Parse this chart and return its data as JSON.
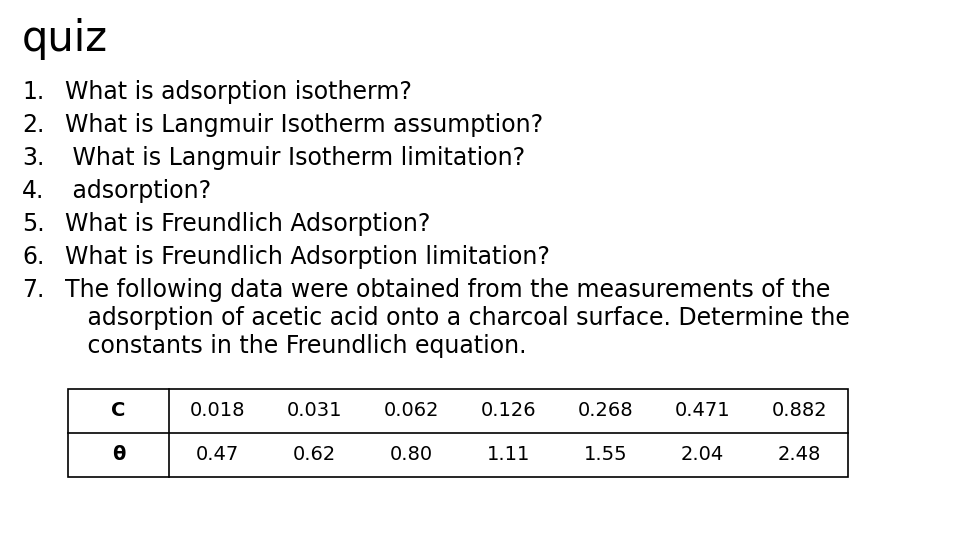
{
  "title": "quiz",
  "items": [
    "What is adsorption isotherm?",
    "What is Langmuir Isotherm assumption?",
    " What is Langmuir Isotherm limitation?",
    " adsorption?",
    "What is Freundlich Adsorption?",
    "What is Freundlich Adsorption limitation?",
    "The following data were obtained from the measurements of the\n   adsorption of acetic acid onto a charcoal surface. Determine the\n   constants in the Freundlich equation."
  ],
  "table_headers": [
    "C",
    "0.018",
    "0.031",
    "0.062",
    "0.126",
    "0.268",
    "0.471",
    "0.882"
  ],
  "table_row2": [
    "θ",
    "0.47",
    "0.62",
    "0.80",
    "1.11",
    "1.55",
    "2.04",
    "2.48"
  ],
  "bg_color": "#ffffff",
  "text_color": "#000000",
  "title_fontsize": 30,
  "item_fontsize": 17,
  "table_fontsize": 14
}
